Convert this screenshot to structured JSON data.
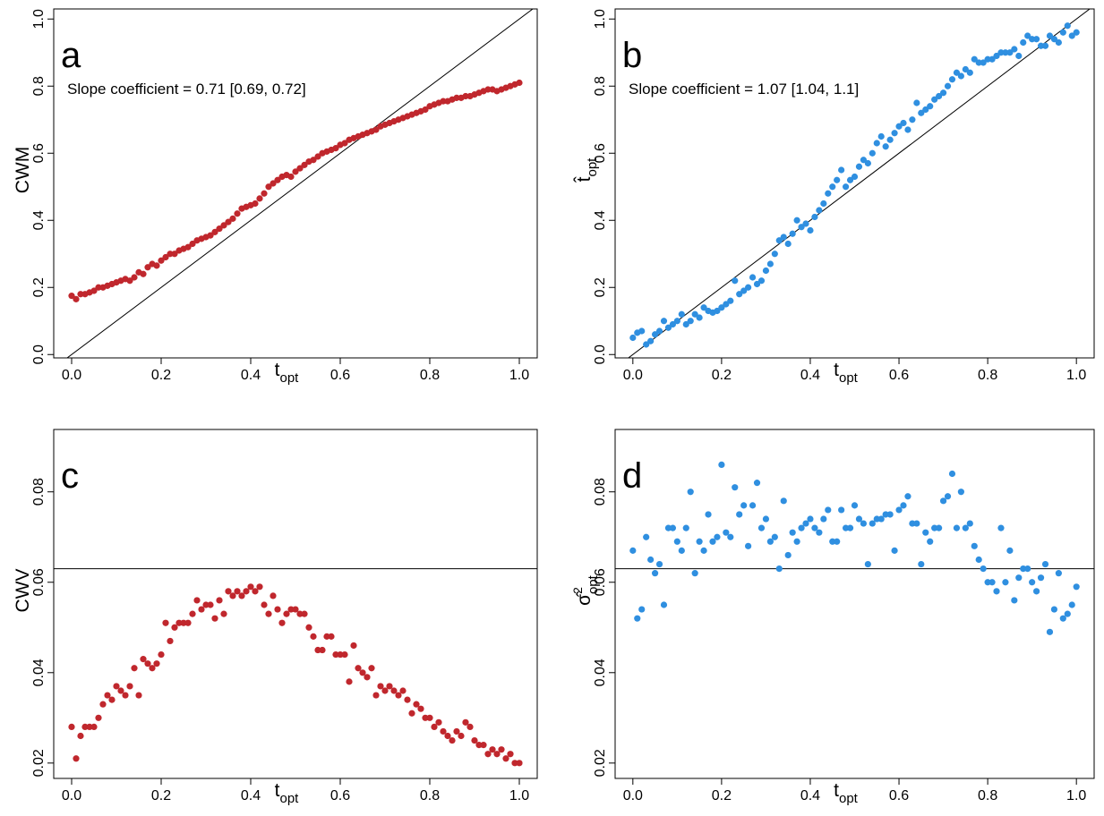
{
  "chart_data": [
    {
      "type": "scatter",
      "panel_label": "a",
      "annotation": "Slope coefficient = 0.71 [0.69, 0.72]",
      "xlabel": {
        "main": "t",
        "sub": "opt"
      },
      "ylabel": "CWM",
      "xlim": [
        -0.04,
        1.04
      ],
      "ylim": [
        -0.01,
        1.03
      ],
      "xticks": [
        {
          "value": 0,
          "label": "0.0"
        },
        0.2,
        0.4,
        0.6,
        0.8,
        {
          "value": 1,
          "label": "1.0"
        }
      ],
      "yticks": [
        {
          "value": 0,
          "label": "0.0"
        },
        0.2,
        0.4,
        0.6,
        0.8,
        {
          "value": 1,
          "label": "1.0"
        }
      ],
      "abline": {
        "intercept": 0,
        "slope": 1
      },
      "x": [
        0,
        0.01,
        0.02,
        0.03,
        0.04,
        0.05,
        0.06,
        0.07,
        0.08,
        0.09,
        0.1,
        0.11,
        0.12,
        0.13,
        0.14,
        0.15,
        0.16,
        0.17,
        0.18,
        0.19,
        0.2,
        0.21,
        0.22,
        0.23,
        0.24,
        0.25,
        0.26,
        0.27,
        0.28,
        0.29,
        0.3,
        0.31,
        0.32,
        0.33,
        0.34,
        0.35,
        0.36,
        0.37,
        0.38,
        0.39,
        0.4,
        0.41,
        0.42,
        0.43,
        0.44,
        0.45,
        0.46,
        0.47,
        0.48,
        0.49,
        0.5,
        0.51,
        0.52,
        0.53,
        0.54,
        0.55,
        0.56,
        0.57,
        0.58,
        0.59,
        0.6,
        0.61,
        0.62,
        0.63,
        0.64,
        0.65,
        0.66,
        0.67,
        0.68,
        0.69,
        0.7,
        0.71,
        0.72,
        0.73,
        0.74,
        0.75,
        0.76,
        0.77,
        0.78,
        0.79,
        0.8,
        0.81,
        0.82,
        0.83,
        0.84,
        0.85,
        0.86,
        0.87,
        0.88,
        0.89,
        0.9,
        0.91,
        0.92,
        0.93,
        0.94,
        0.95,
        0.96,
        0.97,
        0.98,
        0.99,
        1
      ],
      "series": [
        {
          "color": "#c0272d",
          "values": [
            0.175,
            0.165,
            0.18,
            0.18,
            0.185,
            0.19,
            0.2,
            0.2,
            0.205,
            0.21,
            0.215,
            0.22,
            0.225,
            0.22,
            0.23,
            0.245,
            0.24,
            0.26,
            0.27,
            0.265,
            0.28,
            0.29,
            0.3,
            0.3,
            0.31,
            0.315,
            0.32,
            0.33,
            0.34,
            0.345,
            0.35,
            0.355,
            0.365,
            0.375,
            0.385,
            0.395,
            0.405,
            0.42,
            0.435,
            0.44,
            0.445,
            0.45,
            0.465,
            0.48,
            0.5,
            0.51,
            0.52,
            0.53,
            0.535,
            0.53,
            0.545,
            0.555,
            0.565,
            0.575,
            0.58,
            0.59,
            0.6,
            0.605,
            0.61,
            0.615,
            0.625,
            0.63,
            0.64,
            0.645,
            0.65,
            0.655,
            0.66,
            0.665,
            0.67,
            0.68,
            0.685,
            0.69,
            0.695,
            0.7,
            0.705,
            0.71,
            0.715,
            0.72,
            0.725,
            0.73,
            0.74,
            0.745,
            0.75,
            0.755,
            0.755,
            0.76,
            0.765,
            0.765,
            0.77,
            0.77,
            0.775,
            0.78,
            0.785,
            0.79,
            0.79,
            0.785,
            0.79,
            0.795,
            0.8,
            0.805,
            0.81
          ]
        }
      ]
    },
    {
      "type": "scatter",
      "panel_label": "b",
      "annotation": "Slope coefficient = 1.07 [1.04, 1.1]",
      "xlabel": {
        "main": "t",
        "sub": "opt"
      },
      "ylabel": {
        "main": "t̂",
        "sub": "opt"
      },
      "xlim": [
        -0.04,
        1.04
      ],
      "ylim": [
        -0.01,
        1.03
      ],
      "xticks": [
        {
          "value": 0,
          "label": "0.0"
        },
        0.2,
        0.4,
        0.6,
        0.8,
        {
          "value": 1,
          "label": "1.0"
        }
      ],
      "yticks": [
        {
          "value": 0,
          "label": "0.0"
        },
        0.2,
        0.4,
        0.6,
        0.8,
        {
          "value": 1,
          "label": "1.0"
        }
      ],
      "abline": {
        "intercept": 0,
        "slope": 1
      },
      "x": [
        0,
        0.01,
        0.02,
        0.03,
        0.04,
        0.05,
        0.06,
        0.07,
        0.08,
        0.09,
        0.1,
        0.11,
        0.12,
        0.13,
        0.14,
        0.15,
        0.16,
        0.17,
        0.18,
        0.19,
        0.2,
        0.21,
        0.22,
        0.23,
        0.24,
        0.25,
        0.26,
        0.27,
        0.28,
        0.29,
        0.3,
        0.31,
        0.32,
        0.33,
        0.34,
        0.35,
        0.36,
        0.37,
        0.38,
        0.39,
        0.4,
        0.41,
        0.42,
        0.43,
        0.44,
        0.45,
        0.46,
        0.47,
        0.48,
        0.49,
        0.5,
        0.51,
        0.52,
        0.53,
        0.54,
        0.55,
        0.56,
        0.57,
        0.58,
        0.59,
        0.6,
        0.61,
        0.62,
        0.63,
        0.64,
        0.65,
        0.66,
        0.67,
        0.68,
        0.69,
        0.7,
        0.71,
        0.72,
        0.73,
        0.74,
        0.75,
        0.76,
        0.77,
        0.78,
        0.79,
        0.8,
        0.81,
        0.82,
        0.83,
        0.84,
        0.85,
        0.86,
        0.87,
        0.88,
        0.89,
        0.9,
        0.91,
        0.92,
        0.93,
        0.94,
        0.95,
        0.96,
        0.97,
        0.98,
        0.99,
        1
      ],
      "series": [
        {
          "color": "#2f8fe0",
          "values": [
            0.05,
            0.065,
            0.07,
            0.03,
            0.04,
            0.06,
            0.07,
            0.1,
            0.08,
            0.09,
            0.1,
            0.12,
            0.09,
            0.1,
            0.12,
            0.11,
            0.14,
            0.13,
            0.125,
            0.13,
            0.14,
            0.15,
            0.16,
            0.22,
            0.18,
            0.19,
            0.2,
            0.23,
            0.21,
            0.22,
            0.25,
            0.27,
            0.3,
            0.34,
            0.35,
            0.33,
            0.36,
            0.4,
            0.38,
            0.39,
            0.37,
            0.41,
            0.43,
            0.45,
            0.48,
            0.5,
            0.52,
            0.55,
            0.5,
            0.52,
            0.53,
            0.56,
            0.58,
            0.57,
            0.6,
            0.63,
            0.65,
            0.62,
            0.64,
            0.66,
            0.68,
            0.69,
            0.67,
            0.7,
            0.75,
            0.72,
            0.73,
            0.74,
            0.76,
            0.77,
            0.78,
            0.8,
            0.82,
            0.84,
            0.83,
            0.85,
            0.84,
            0.88,
            0.87,
            0.87,
            0.88,
            0.88,
            0.89,
            0.9,
            0.9,
            0.9,
            0.91,
            0.89,
            0.93,
            0.95,
            0.94,
            0.94,
            0.92,
            0.92,
            0.95,
            0.94,
            0.93,
            0.96,
            0.98,
            0.95,
            0.96
          ]
        }
      ]
    },
    {
      "type": "scatter",
      "panel_label": "c",
      "xlabel": {
        "main": "t",
        "sub": "opt"
      },
      "ylabel": "CWV",
      "xlim": [
        -0.04,
        1.04
      ],
      "ylim": [
        0.0166,
        0.0938
      ],
      "xticks": [
        {
          "value": 0,
          "label": "0.0"
        },
        0.2,
        0.4,
        0.6,
        0.8,
        {
          "value": 1,
          "label": "1.0"
        }
      ],
      "yticks": [
        0.02,
        0.04,
        0.06,
        0.08
      ],
      "hline": 0.063,
      "x": [
        0,
        0.01,
        0.02,
        0.03,
        0.04,
        0.05,
        0.06,
        0.07,
        0.08,
        0.09,
        0.1,
        0.11,
        0.12,
        0.13,
        0.14,
        0.15,
        0.16,
        0.17,
        0.18,
        0.19,
        0.2,
        0.21,
        0.22,
        0.23,
        0.24,
        0.25,
        0.26,
        0.27,
        0.28,
        0.29,
        0.3,
        0.31,
        0.32,
        0.33,
        0.34,
        0.35,
        0.36,
        0.37,
        0.38,
        0.39,
        0.4,
        0.41,
        0.42,
        0.43,
        0.44,
        0.45,
        0.46,
        0.47,
        0.48,
        0.49,
        0.5,
        0.51,
        0.52,
        0.53,
        0.54,
        0.55,
        0.56,
        0.57,
        0.58,
        0.59,
        0.6,
        0.61,
        0.62,
        0.63,
        0.64,
        0.65,
        0.66,
        0.67,
        0.68,
        0.69,
        0.7,
        0.71,
        0.72,
        0.73,
        0.74,
        0.75,
        0.76,
        0.77,
        0.78,
        0.79,
        0.8,
        0.81,
        0.82,
        0.83,
        0.84,
        0.85,
        0.86,
        0.87,
        0.88,
        0.89,
        0.9,
        0.91,
        0.92,
        0.93,
        0.94,
        0.95,
        0.96,
        0.97,
        0.98,
        0.99,
        1
      ],
      "series": [
        {
          "color": "#c0272d",
          "values": [
            0.028,
            0.021,
            0.026,
            0.028,
            0.028,
            0.028,
            0.03,
            0.033,
            0.035,
            0.034,
            0.037,
            0.036,
            0.035,
            0.037,
            0.041,
            0.035,
            0.043,
            0.042,
            0.041,
            0.042,
            0.044,
            0.051,
            0.047,
            0.05,
            0.051,
            0.051,
            0.051,
            0.053,
            0.056,
            0.054,
            0.055,
            0.055,
            0.052,
            0.056,
            0.053,
            0.058,
            0.057,
            0.058,
            0.057,
            0.058,
            0.059,
            0.058,
            0.059,
            0.055,
            0.053,
            0.057,
            0.054,
            0.051,
            0.053,
            0.054,
            0.054,
            0.053,
            0.053,
            0.05,
            0.048,
            0.045,
            0.045,
            0.048,
            0.048,
            0.044,
            0.044,
            0.044,
            0.038,
            0.046,
            0.041,
            0.04,
            0.039,
            0.041,
            0.035,
            0.037,
            0.036,
            0.037,
            0.036,
            0.035,
            0.036,
            0.034,
            0.031,
            0.033,
            0.032,
            0.03,
            0.03,
            0.028,
            0.029,
            0.027,
            0.026,
            0.025,
            0.027,
            0.026,
            0.029,
            0.028,
            0.025,
            0.024,
            0.024,
            0.022,
            0.023,
            0.022,
            0.023,
            0.021,
            0.022,
            0.02,
            0.02
          ]
        }
      ]
    },
    {
      "type": "scatter",
      "panel_label": "d",
      "xlabel": {
        "main": "t",
        "sub": "opt"
      },
      "ylabel": {
        "main": "σ̂",
        "sup": "2",
        "sub": "opt"
      },
      "xlim": [
        -0.04,
        1.04
      ],
      "ylim": [
        0.0166,
        0.0938
      ],
      "xticks": [
        {
          "value": 0,
          "label": "0.0"
        },
        0.2,
        0.4,
        0.6,
        0.8,
        {
          "value": 1,
          "label": "1.0"
        }
      ],
      "yticks": [
        0.02,
        0.04,
        0.06,
        0.08
      ],
      "hline": 0.063,
      "x": [
        0,
        0.01,
        0.02,
        0.03,
        0.04,
        0.05,
        0.06,
        0.07,
        0.08,
        0.09,
        0.1,
        0.11,
        0.12,
        0.13,
        0.14,
        0.15,
        0.16,
        0.17,
        0.18,
        0.19,
        0.2,
        0.21,
        0.22,
        0.23,
        0.24,
        0.25,
        0.26,
        0.27,
        0.28,
        0.29,
        0.3,
        0.31,
        0.32,
        0.33,
        0.34,
        0.35,
        0.36,
        0.37,
        0.38,
        0.39,
        0.4,
        0.41,
        0.42,
        0.43,
        0.44,
        0.45,
        0.46,
        0.47,
        0.48,
        0.49,
        0.5,
        0.51,
        0.52,
        0.53,
        0.54,
        0.55,
        0.56,
        0.57,
        0.58,
        0.59,
        0.6,
        0.61,
        0.62,
        0.63,
        0.64,
        0.65,
        0.66,
        0.67,
        0.68,
        0.69,
        0.7,
        0.71,
        0.72,
        0.73,
        0.74,
        0.75,
        0.76,
        0.77,
        0.78,
        0.79,
        0.8,
        0.81,
        0.82,
        0.83,
        0.84,
        0.85,
        0.86,
        0.87,
        0.88,
        0.89,
        0.9,
        0.91,
        0.92,
        0.93,
        0.94,
        0.95,
        0.96,
        0.97,
        0.98,
        0.99,
        1
      ],
      "series": [
        {
          "color": "#2f8fe0",
          "values": [
            0.067,
            0.052,
            0.054,
            0.07,
            0.065,
            0.062,
            0.064,
            0.055,
            0.072,
            0.072,
            0.069,
            0.067,
            0.072,
            0.08,
            0.062,
            0.069,
            0.067,
            0.075,
            0.069,
            0.07,
            0.086,
            0.071,
            0.07,
            0.081,
            0.075,
            0.077,
            0.068,
            0.077,
            0.082,
            0.072,
            0.074,
            0.069,
            0.07,
            0.063,
            0.078,
            0.066,
            0.071,
            0.069,
            0.072,
            0.073,
            0.074,
            0.072,
            0.071,
            0.074,
            0.076,
            0.069,
            0.069,
            0.076,
            0.072,
            0.072,
            0.077,
            0.074,
            0.073,
            0.064,
            0.073,
            0.074,
            0.074,
            0.075,
            0.075,
            0.067,
            0.076,
            0.077,
            0.079,
            0.073,
            0.073,
            0.064,
            0.071,
            0.069,
            0.072,
            0.072,
            0.078,
            0.079,
            0.084,
            0.072,
            0.08,
            0.072,
            0.073,
            0.068,
            0.065,
            0.063,
            0.06,
            0.06,
            0.058,
            0.072,
            0.06,
            0.067,
            0.056,
            0.061,
            0.063,
            0.063,
            0.06,
            0.058,
            0.061,
            0.064,
            0.049,
            0.054,
            0.062,
            0.052,
            0.053,
            0.055,
            0.059
          ]
        }
      ]
    }
  ]
}
